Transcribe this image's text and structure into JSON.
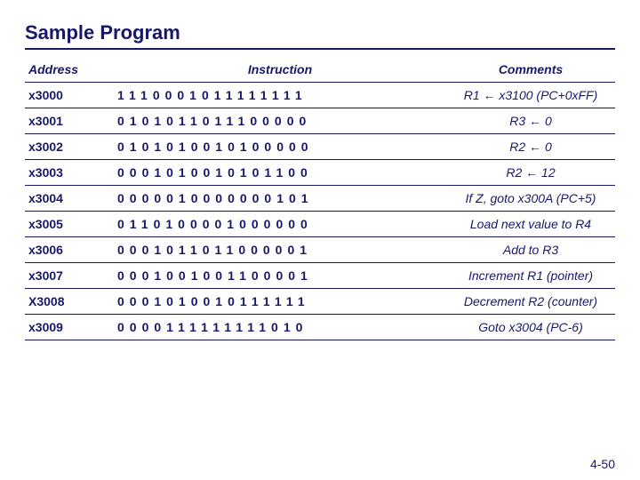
{
  "title": "Sample Program",
  "headers": {
    "address": "Address",
    "instruction": "Instruction",
    "comments": "Comments"
  },
  "rows": [
    {
      "address": "x3000",
      "instruction": "1110001011111111",
      "comment": "R1 ← x3100 (PC+0xFF)"
    },
    {
      "address": "x3001",
      "instruction": "0101011011100000",
      "comment": "R3 ← 0"
    },
    {
      "address": "x3002",
      "instruction": "0101010010100000",
      "comment": "R2 ← 0"
    },
    {
      "address": "x3003",
      "instruction": "0001010010101100",
      "comment": "R2 ← 12"
    },
    {
      "address": "x3004",
      "instruction": "0000010000000101",
      "comment": "If Z, goto x300A (PC+5)"
    },
    {
      "address": "x3005",
      "instruction": "0110100001000000",
      "comment": "Load next value to R4"
    },
    {
      "address": "x3006",
      "instruction": "0001011011000001",
      "comment": "Add to R3"
    },
    {
      "address": "x3007",
      "instruction": "0001001001100001",
      "comment": "Increment R1 (pointer)"
    },
    {
      "address": "X3008",
      "instruction": "0001010010111111",
      "comment": "Decrement R2 (counter)"
    },
    {
      "address": "x3009",
      "instruction": "0000111111111010",
      "comment": "Goto x3004 (PC-6)"
    }
  ],
  "footer": "4-50",
  "colors": {
    "text": "#18186a",
    "rule": "#18186a",
    "background": "#ffffff"
  }
}
